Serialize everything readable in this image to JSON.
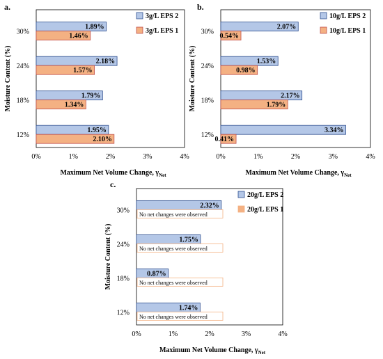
{
  "chart_data": [
    {
      "panel": "a.",
      "type": "bar",
      "orientation": "horizontal",
      "categories": [
        "30%",
        "24%",
        "18%",
        "12%"
      ],
      "series": [
        {
          "name": "3g/L EPS 2",
          "values": [
            1.89,
            2.18,
            1.79,
            1.95
          ],
          "labels": [
            "1.89%",
            "2.18%",
            "1.79%",
            "1.95%"
          ],
          "color": "#b4c7e7",
          "edge": "#2f4f8f"
        },
        {
          "name": "3g/L EPS 1",
          "values": [
            1.46,
            1.57,
            1.34,
            2.1
          ],
          "labels": [
            "1.46%",
            "1.57%",
            "1.34%",
            "2.10%"
          ],
          "color": "#f4b183",
          "edge": "#c0504d"
        }
      ],
      "xlabel": "Maximum Net Volume Change, γ",
      "xlabel_sub": "Net",
      "ylabel": "Moisture Content (%)",
      "xlim": [
        0,
        4
      ],
      "xticks": [
        "0%",
        "1%",
        "2%",
        "3%",
        "4%"
      ],
      "grid": false,
      "legend": "top-right"
    },
    {
      "panel": "b.",
      "type": "bar",
      "orientation": "horizontal",
      "categories": [
        "30%",
        "24%",
        "18%",
        "12%"
      ],
      "series": [
        {
          "name": "10g/L EPS 2",
          "values": [
            2.07,
            1.53,
            2.17,
            3.34
          ],
          "labels": [
            "2.07%",
            "1.53%",
            "2.17%",
            "3.34%"
          ],
          "color": "#b4c7e7",
          "edge": "#2f4f8f"
        },
        {
          "name": "10g/L EPS 1",
          "values": [
            0.54,
            0.98,
            1.79,
            0.41
          ],
          "labels": [
            "0.54%",
            "0.98%",
            "1.79%",
            "0.41%"
          ],
          "color": "#f4b183",
          "edge": "#c0504d"
        }
      ],
      "xlabel": "Maximum Net Volume Change, γ",
      "xlabel_sub": "Net",
      "ylabel": "Moisture Content (%)",
      "xlim": [
        0,
        4
      ],
      "xticks": [
        "0%",
        "1%",
        "2%",
        "3%",
        "4%"
      ],
      "grid": false,
      "legend": "top-right"
    },
    {
      "panel": "c.",
      "type": "bar",
      "orientation": "horizontal",
      "categories": [
        "30%",
        "24%",
        "18%",
        "12%"
      ],
      "series": [
        {
          "name": "20g/L EPS 2",
          "values": [
            2.32,
            1.75,
            0.87,
            1.74
          ],
          "labels": [
            "2.32%",
            "1.75%",
            "0.87%",
            "1.74%"
          ],
          "color": "#b4c7e7",
          "edge": "#2f4f8f"
        },
        {
          "name": "20g/L EPS 1",
          "values": [
            null,
            null,
            null,
            null
          ],
          "labels": [
            "No net changes were observed",
            "No net changes were observed",
            "No net changes were observed",
            "No net changes were observed"
          ],
          "color": "#f4b183",
          "edge": "#f4b183"
        }
      ],
      "xlabel": "Maximum Net Volume Change, γ",
      "xlabel_sub": "Net",
      "ylabel": "Moisture Content (%)",
      "xlim": [
        0,
        4
      ],
      "xticks": [
        "0%",
        "1%",
        "2%",
        "3%",
        "4%"
      ],
      "grid": false,
      "legend": "top-right"
    }
  ]
}
